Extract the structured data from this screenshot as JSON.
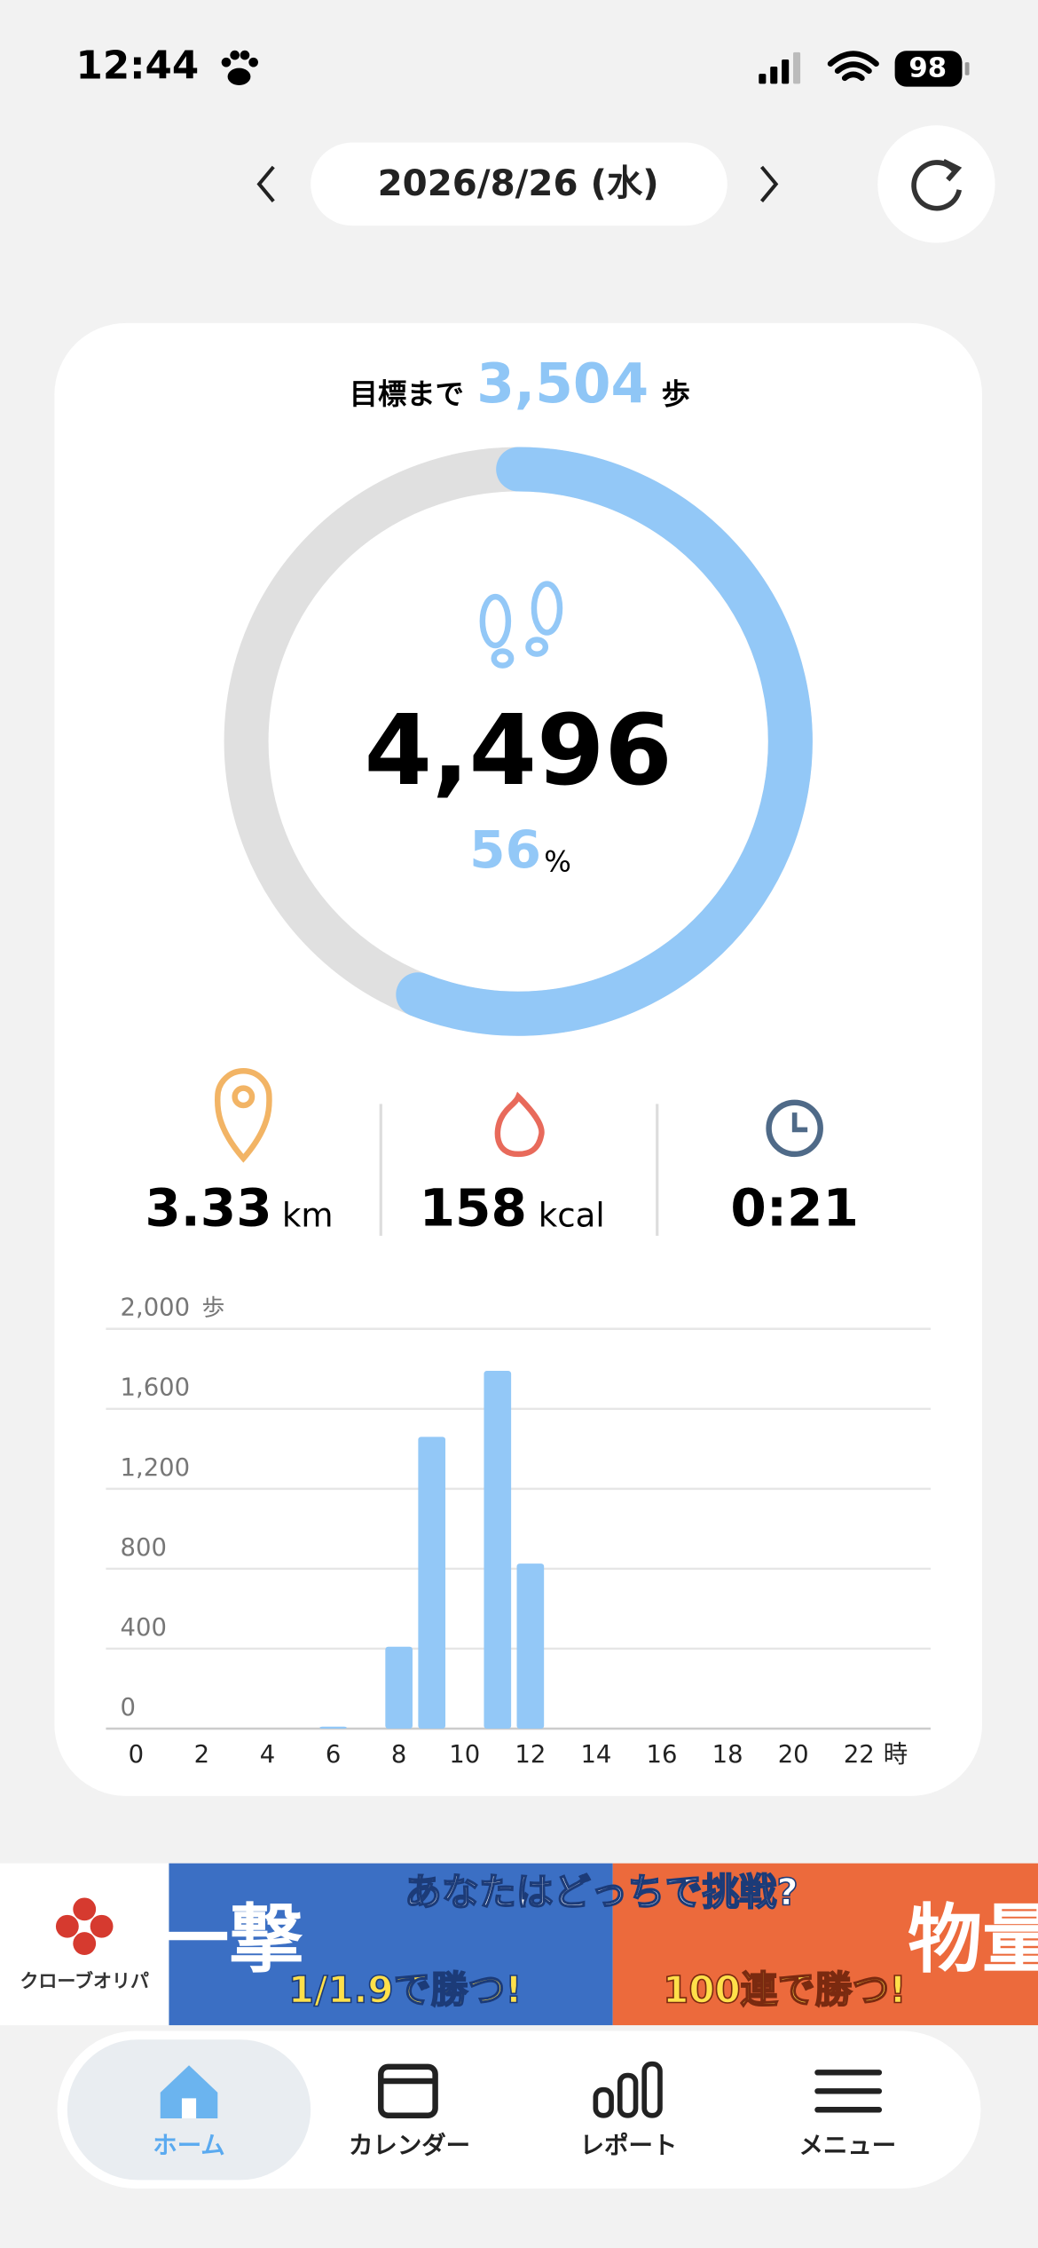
{
  "status": {
    "time": "12:44",
    "battery": "98"
  },
  "date": "2026/8/26 (水)",
  "goal": {
    "prefix": "目標まで",
    "remaining": "3,504",
    "unit": "歩"
  },
  "ring": {
    "steps": "4,496",
    "percent": 56,
    "percent_unit": "%"
  },
  "stats": {
    "distance": "3.33",
    "distance_unit": "km",
    "calories": "158",
    "calories_unit": "kcal",
    "duration": "0:21"
  },
  "chart": {
    "type": "bar",
    "color": "#93c8f7",
    "y_unit": "歩",
    "x_unit": "時",
    "categories": [
      0,
      null,
      2,
      null,
      4,
      null,
      6,
      null,
      8,
      null,
      10,
      null,
      12,
      null,
      14,
      null,
      16,
      null,
      18,
      null,
      20,
      null,
      22,
      null
    ],
    "values": [
      0,
      0,
      0,
      0,
      0,
      0,
      10,
      0,
      410,
      1460,
      0,
      1790,
      826,
      0,
      0,
      0,
      0,
      0,
      0,
      0,
      0,
      0,
      0,
      0
    ],
    "ylim": [
      0,
      2000
    ],
    "yticks": [
      0,
      400,
      800,
      {
        "value": 1200,
        "label": "1,200"
      },
      {
        "value": 1600,
        "label": "1,600"
      },
      {
        "value": 2000,
        "label": "2,000"
      }
    ],
    "grid": true
  },
  "ad": {
    "brand": "クローブオリパ",
    "headline": "あなたはどっちで挑戦?",
    "left_big": "一撃",
    "left_sub": "1/1.9で勝つ!",
    "right_sub": "100連で勝つ!",
    "right_big": "物量"
  },
  "nav": [
    "ホーム",
    "カレンダー",
    "レポート",
    "メニュー"
  ]
}
